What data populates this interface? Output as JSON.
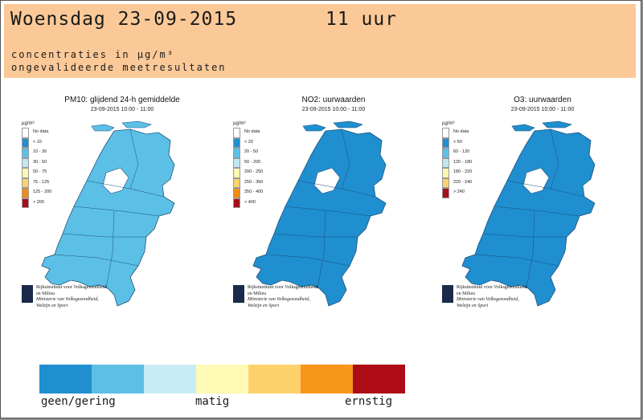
{
  "header": {
    "day_label": "Woensdag 23-09-2015",
    "hour_label": "11 uur",
    "subtitle_line1": "concentraties in µg/m³",
    "subtitle_line2": "ongevalideerde meetresultaten"
  },
  "panels": [
    {
      "id": "pm10",
      "title": "PM10: glijdend 24-h gemiddelde",
      "timestamp": "23-09-2015 10:00 - 11:00",
      "unit": "µg/m³",
      "legend": [
        {
          "label": "No data",
          "color": "#ffffff"
        },
        {
          "label": "< 10",
          "color": "#1f8fd0"
        },
        {
          "label": "10 - 30",
          "color": "#5cc0e6"
        },
        {
          "label": "30 - 50",
          "color": "#bfe8f3"
        },
        {
          "label": "50 - 75",
          "color": "#fef7b3"
        },
        {
          "label": "75 - 125",
          "color": "#fbd26d"
        },
        {
          "label": "125 - 200",
          "color": "#f28c16"
        },
        {
          "label": "> 200",
          "color": "#a60f17"
        }
      ],
      "dominant_class": "10 - 30"
    },
    {
      "id": "no2",
      "title": "NO2: uurwaarden",
      "timestamp": "23-09-2015 10:00 - 11:00",
      "unit": "µg/m³",
      "legend": [
        {
          "label": "No data",
          "color": "#ffffff"
        },
        {
          "label": "< 20",
          "color": "#1f8fd0"
        },
        {
          "label": "20 - 50",
          "color": "#5cc0e6"
        },
        {
          "label": "50 - 200",
          "color": "#bfe8f3"
        },
        {
          "label": "200 - 250",
          "color": "#fef7b3"
        },
        {
          "label": "250 - 350",
          "color": "#fbd26d"
        },
        {
          "label": "350 - 400",
          "color": "#f28c16"
        },
        {
          "label": "> 400",
          "color": "#a60f17"
        }
      ],
      "dominant_class": "< 20"
    },
    {
      "id": "o3",
      "title": "O3: uurwaarden",
      "timestamp": "23-09-2015 10:00 - 11:00",
      "unit": "µg/m³",
      "legend": [
        {
          "label": "No data",
          "color": "#ffffff"
        },
        {
          "label": "< 60",
          "color": "#1f8fd0"
        },
        {
          "label": "60 - 120",
          "color": "#5cc0e6"
        },
        {
          "label": "120 - 180",
          "color": "#bfe8f3"
        },
        {
          "label": "180 - 220",
          "color": "#fef7b3"
        },
        {
          "label": "220 - 240",
          "color": "#fbd26d"
        },
        {
          "label": "> 240",
          "color": "#a60f17"
        }
      ],
      "dominant_class": "< 60"
    }
  ],
  "logo": {
    "line1": "Rijksinstituut voor Volksgezondheid",
    "line2": "en Milieu",
    "line3": "Ministerie van Volksgezondheid,",
    "line4": "Welzijn en Sport"
  },
  "scale": {
    "colors": [
      "#1f8fd0",
      "#5cc0e6",
      "#c8ecf5",
      "#fef9b5",
      "#fdd26c",
      "#f8961c",
      "#ad0b15"
    ],
    "label_low": "geen/gering",
    "label_mid": "matig",
    "label_high": "ernstig"
  },
  "colors": {
    "header_background": "#fbc998",
    "frame": "#8c8c8c"
  }
}
